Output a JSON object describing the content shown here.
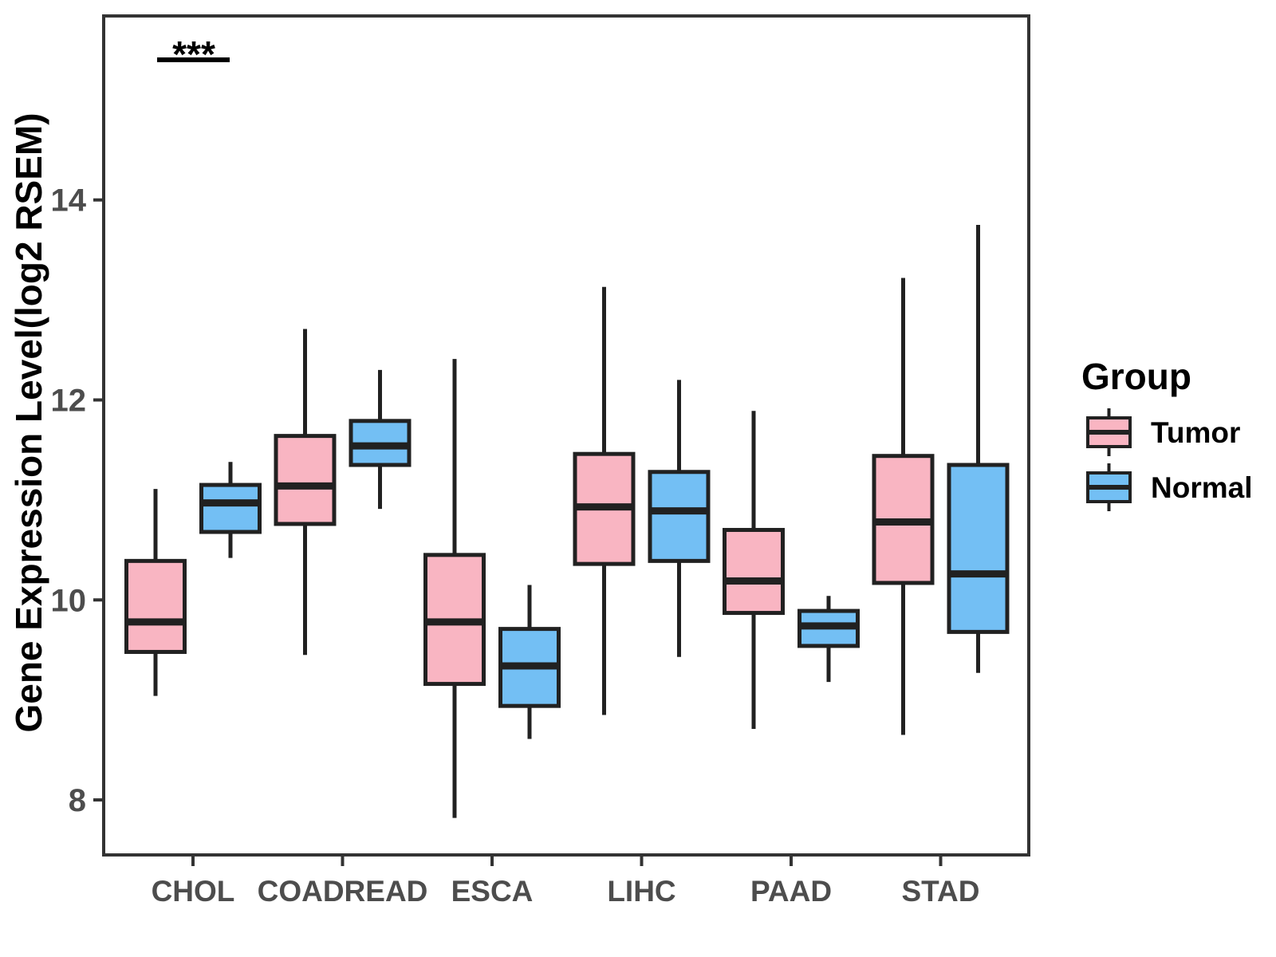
{
  "chart_data": {
    "type": "box",
    "title": "",
    "xlabel": "",
    "ylabel": "Gene Expression Level(log2 RSEM)",
    "categories": [
      "CHOL",
      "COADREAD",
      "ESCA",
      "LIHC",
      "PAAD",
      "STAD"
    ],
    "yticks": [
      "8",
      "10",
      "12",
      "14"
    ],
    "ytick_values": [
      8,
      10,
      12,
      14
    ],
    "ylim": [
      7.45,
      15.84
    ],
    "grid": "off",
    "stats_order": [
      "whisker_min",
      "q1",
      "median",
      "q3",
      "whisker_max"
    ],
    "series": [
      {
        "name": "Tumor",
        "color": "#F9B5C2",
        "data": [
          [
            9.04,
            9.48,
            9.78,
            10.39,
            11.11
          ],
          [
            9.45,
            10.76,
            11.14,
            11.64,
            12.71
          ],
          [
            7.82,
            9.16,
            9.78,
            10.45,
            12.41
          ],
          [
            8.85,
            10.36,
            10.93,
            11.46,
            13.13
          ],
          [
            8.71,
            9.87,
            10.19,
            10.7,
            11.89
          ],
          [
            8.65,
            10.17,
            10.78,
            11.44,
            13.22
          ]
        ]
      },
      {
        "name": "Normal",
        "color": "#73BFF4",
        "data": [
          [
            10.42,
            10.68,
            10.97,
            11.15,
            11.38
          ],
          [
            10.91,
            11.35,
            11.54,
            11.79,
            12.3
          ],
          [
            8.61,
            8.94,
            9.34,
            9.71,
            10.15
          ],
          [
            9.43,
            10.39,
            10.89,
            11.28,
            12.2
          ],
          [
            9.18,
            9.54,
            9.74,
            9.89,
            10.04
          ],
          [
            9.27,
            9.68,
            10.26,
            11.35,
            13.75
          ]
        ]
      }
    ],
    "legend": {
      "title": "Group",
      "position": "right",
      "entries": [
        {
          "label": "Tumor",
          "color": "#F9B5C2"
        },
        {
          "label": "Normal",
          "color": "#73BFF4"
        }
      ]
    },
    "annotations": [
      {
        "label": "***",
        "category": "CHOL",
        "between": [
          "Tumor",
          "Normal"
        ]
      }
    ],
    "colors": {
      "box_stroke": "#212121",
      "axis_line": "#333333",
      "tick_label": "#4D4D4D",
      "axis_title": "#000000",
      "background": "#FFFFFF"
    }
  }
}
